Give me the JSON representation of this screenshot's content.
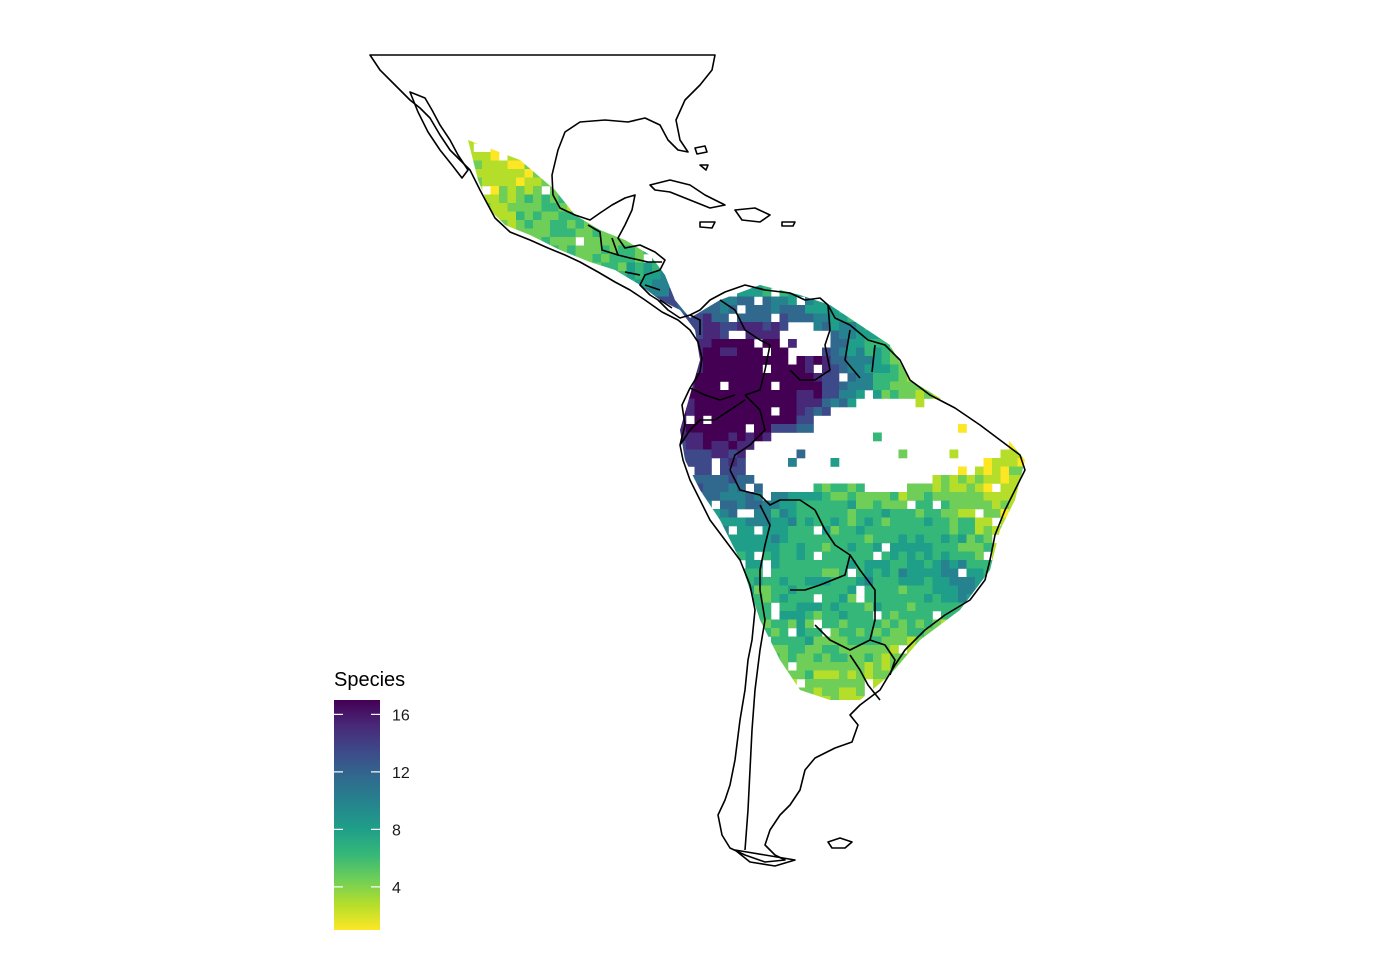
{
  "legend": {
    "title": "Species",
    "ticks": [
      {
        "value": 16,
        "label": "16"
      },
      {
        "value": 12,
        "label": "12"
      },
      {
        "value": 8,
        "label": "8"
      },
      {
        "value": 4,
        "label": "4"
      }
    ],
    "min_value": 1,
    "max_value": 17,
    "palette": "viridis (reversed: low = yellow, high = dark purple)",
    "colors": [
      "#fde725",
      "#b5de2b",
      "#6ece58",
      "#35b779",
      "#1f9e89",
      "#26828e",
      "#31688e",
      "#3e4989",
      "#482878",
      "#440154"
    ]
  },
  "map": {
    "region": "Latin America",
    "description_layers": [
      "country borders",
      "species richness grid"
    ],
    "border_color": "#000000",
    "background": "#ffffff"
  }
}
